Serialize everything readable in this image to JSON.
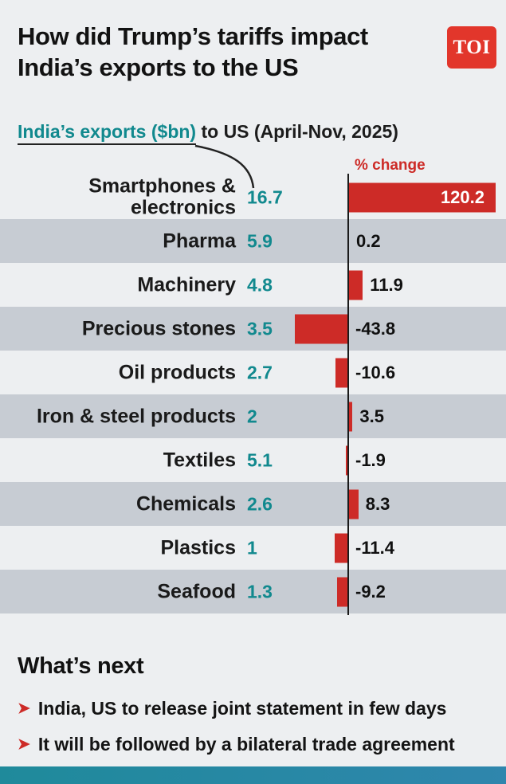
{
  "header": {
    "title": "How did Trump’s tariffs impact\nIndia’s exports to the US",
    "logo_text": "TOI"
  },
  "subtitle": {
    "highlight": "India’s exports ($bn)",
    "rest": " to US (April-Nov, 2025)"
  },
  "chart_data": {
    "type": "bar",
    "title": "India’s exports ($bn) to US (April-Nov, 2025)",
    "pct_change_label": "% change",
    "categories": [
      "Smartphones &\nelectronics",
      "Pharma",
      "Machinery",
      "Precious stones",
      "Oil products",
      "Iron & steel products",
      "Textiles",
      "Chemicals",
      "Plastics",
      "Seafood"
    ],
    "series": [
      {
        "name": "India’s exports ($bn)",
        "values": [
          16.7,
          5.9,
          4.8,
          3.5,
          2.7,
          2,
          5.1,
          2.6,
          1,
          1.3
        ]
      },
      {
        "name": "% change",
        "values": [
          120.2,
          0.2,
          11.9,
          -43.8,
          -10.6,
          3.5,
          -1.9,
          8.3,
          -11.4,
          -9.2
        ]
      }
    ],
    "xlim": [
      -50,
      125
    ],
    "grid": false,
    "legend_position": "none",
    "bar_color": "#cd2b27",
    "value_color": "#11898e"
  },
  "whats_next": {
    "heading": "What’s next",
    "bullet_icon": "➤",
    "items": [
      "India, US to release joint statement in few days",
      "It will be followed by a bilateral trade agreement"
    ]
  },
  "colors": {
    "background": "#edeff1",
    "row_shade": "#c7ccd3",
    "red": "#cd2b27",
    "teal": "#11898e",
    "logo_red": "#e2362b",
    "bottom_bar": "#2b8aa3",
    "text": "#141414"
  }
}
